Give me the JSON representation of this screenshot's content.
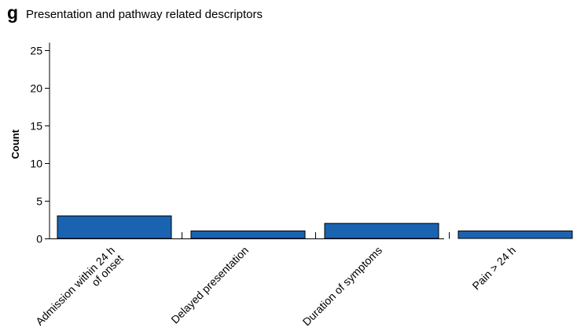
{
  "panel_letter": "g",
  "title": "Presentation and pathway related descriptors",
  "chart_data": {
    "type": "bar",
    "title": "Presentation and pathway related descriptors",
    "xlabel": "",
    "ylabel": "Count",
    "categories": [
      [
        "Admission within 24 h",
        "of onset"
      ],
      [
        "Delayed presentation"
      ],
      [
        "Duration of symptoms"
      ],
      [
        "Pain > 24 h"
      ]
    ],
    "values": [
      3,
      1,
      2,
      1
    ],
    "ylim": [
      0,
      26
    ],
    "yticks": [
      0,
      5,
      10,
      15,
      20,
      25
    ],
    "grid": false,
    "bar_color": "#1a63b0",
    "bar_edge_color": "#000000"
  }
}
